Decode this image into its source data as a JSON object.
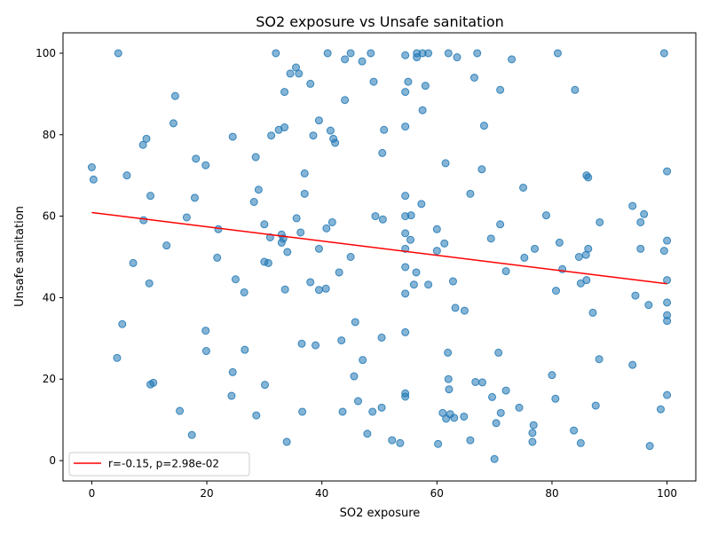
{
  "chart_data": {
    "type": "scatter",
    "title": "SO2 exposure vs Unsafe sanitation",
    "xlabel": "SO2 exposure",
    "ylabel": "Unsafe sanitation",
    "xlim": [
      -5,
      105
    ],
    "ylim": [
      -5,
      105
    ],
    "x_ticks": [
      0,
      20,
      40,
      60,
      80,
      100
    ],
    "y_ticks": [
      0,
      20,
      40,
      60,
      80,
      100
    ],
    "grid": false,
    "legend_position": "lower-left",
    "colors": {
      "points": "#1f77b4",
      "fit_line": "#ff0000"
    },
    "fit_line": {
      "label": "r=-0.15, p=2.98e-02",
      "x": [
        0,
        100
      ],
      "y": [
        60.9,
        43.4
      ]
    },
    "points": [
      [
        4.6,
        100
      ],
      [
        32,
        100
      ],
      [
        41,
        100
      ],
      [
        45,
        100
      ],
      [
        48.5,
        100
      ],
      [
        56.5,
        100
      ],
      [
        57.5,
        100
      ],
      [
        58.5,
        100
      ],
      [
        62,
        100
      ],
      [
        67,
        100
      ],
      [
        81,
        100
      ],
      [
        99.5,
        100
      ],
      [
        54.5,
        99.5
      ],
      [
        56.5,
        99
      ],
      [
        63.5,
        99
      ],
      [
        73,
        98.5
      ],
      [
        44,
        98.5
      ],
      [
        47,
        98
      ],
      [
        35.5,
        96.5
      ],
      [
        34.5,
        95
      ],
      [
        36,
        95
      ],
      [
        66.5,
        94
      ],
      [
        55,
        93
      ],
      [
        49,
        93
      ],
      [
        38,
        92.5
      ],
      [
        58,
        92
      ],
      [
        71,
        91
      ],
      [
        84,
        91
      ],
      [
        33.5,
        90.5
      ],
      [
        54.5,
        90.5
      ],
      [
        14.5,
        89.5
      ],
      [
        44,
        88.5
      ],
      [
        57.5,
        86
      ],
      [
        39.5,
        83.5
      ],
      [
        14.2,
        82.8
      ],
      [
        68.2,
        82.2
      ],
      [
        54.5,
        82
      ],
      [
        33.5,
        81.8
      ],
      [
        32.5,
        81.2
      ],
      [
        41.5,
        81
      ],
      [
        50.8,
        81.2
      ],
      [
        31.2,
        79.8
      ],
      [
        38.5,
        79.8
      ],
      [
        24.5,
        79.5
      ],
      [
        42,
        79
      ],
      [
        9.5,
        79
      ],
      [
        42.3,
        78
      ],
      [
        8.9,
        77.5
      ],
      [
        50.5,
        75.5
      ],
      [
        28.5,
        74.5
      ],
      [
        18.1,
        74.1
      ],
      [
        61.5,
        73
      ],
      [
        19.8,
        72.5
      ],
      [
        0,
        72
      ],
      [
        67.8,
        71.5
      ],
      [
        100,
        71
      ],
      [
        37,
        70.5
      ],
      [
        6.1,
        70
      ],
      [
        86,
        70
      ],
      [
        86.3,
        69.5
      ],
      [
        0.3,
        69
      ],
      [
        75,
        67
      ],
      [
        29,
        66.5
      ],
      [
        37,
        65.5
      ],
      [
        65.8,
        65.5
      ],
      [
        10.2,
        65
      ],
      [
        54.5,
        65
      ],
      [
        17.9,
        64.5
      ],
      [
        28.2,
        63.5
      ],
      [
        57.3,
        63
      ],
      [
        94,
        62.5
      ],
      [
        96,
        60.5
      ],
      [
        79,
        60.2
      ],
      [
        55.5,
        60.2
      ],
      [
        49.3,
        60
      ],
      [
        54.5,
        60
      ],
      [
        16.5,
        59.7
      ],
      [
        35.6,
        59.5
      ],
      [
        9,
        59
      ],
      [
        50.6,
        59.2
      ],
      [
        88.3,
        58.5
      ],
      [
        41.8,
        58.5
      ],
      [
        95.4,
        58.5
      ],
      [
        30,
        58
      ],
      [
        71,
        58
      ],
      [
        22,
        56.8
      ],
      [
        40.8,
        57
      ],
      [
        60,
        56.8
      ],
      [
        36.3,
        56
      ],
      [
        54.5,
        55.8
      ],
      [
        33,
        55.5
      ],
      [
        31,
        54.8
      ],
      [
        33.3,
        54.5
      ],
      [
        69.4,
        54.5
      ],
      [
        100,
        54
      ],
      [
        55.4,
        54.2
      ],
      [
        81.3,
        53.5
      ],
      [
        33,
        53.5
      ],
      [
        61.3,
        53.3
      ],
      [
        13,
        52.8
      ],
      [
        77,
        52
      ],
      [
        39.5,
        52
      ],
      [
        54.5,
        52
      ],
      [
        86.3,
        52
      ],
      [
        95.4,
        52
      ],
      [
        99.5,
        51.5
      ],
      [
        60,
        51.5
      ],
      [
        34,
        51.2
      ],
      [
        85.9,
        50.5
      ],
      [
        84.7,
        50
      ],
      [
        45,
        50
      ],
      [
        75.2,
        49.8
      ],
      [
        21.8,
        49.8
      ],
      [
        30,
        48.8
      ],
      [
        30.7,
        48.5
      ],
      [
        7.2,
        48.5
      ],
      [
        54.5,
        47.5
      ],
      [
        81.8,
        47
      ],
      [
        72,
        46.5
      ],
      [
        56.4,
        46.2
      ],
      [
        43,
        46.2
      ],
      [
        86,
        44.3
      ],
      [
        100,
        44.3
      ],
      [
        25,
        44.5
      ],
      [
        62.8,
        44
      ],
      [
        38,
        43.8
      ],
      [
        10,
        43.5
      ],
      [
        58.5,
        43.2
      ],
      [
        56,
        43.2
      ],
      [
        85,
        43.5
      ],
      [
        40.7,
        42.2
      ],
      [
        33.6,
        42
      ],
      [
        39.5,
        41.9
      ],
      [
        80.7,
        41.7
      ],
      [
        26.5,
        41.3
      ],
      [
        54.5,
        41
      ],
      [
        94.5,
        40.5
      ],
      [
        100,
        38.8
      ],
      [
        96.8,
        38.2
      ],
      [
        63.2,
        37.5
      ],
      [
        64.8,
        36.8
      ],
      [
        87.1,
        36.3
      ],
      [
        100,
        35.7
      ],
      [
        100,
        34.3
      ],
      [
        45.8,
        34
      ],
      [
        5.3,
        33.5
      ],
      [
        19.8,
        31.9
      ],
      [
        54.5,
        31.5
      ],
      [
        50.4,
        30.2
      ],
      [
        43.4,
        29.5
      ],
      [
        36.5,
        28.7
      ],
      [
        38.9,
        28.3
      ],
      [
        26.6,
        27.2
      ],
      [
        19.9,
        26.9
      ],
      [
        70.7,
        26.5
      ],
      [
        61.9,
        26.5
      ],
      [
        4.4,
        25.2
      ],
      [
        88.2,
        24.9
      ],
      [
        47.1,
        24.7
      ],
      [
        94,
        23.5
      ],
      [
        24.5,
        21.7
      ],
      [
        80,
        21
      ],
      [
        45.6,
        20.7
      ],
      [
        62,
        20
      ],
      [
        66.7,
        19.3
      ],
      [
        67.9,
        19.2
      ],
      [
        10.7,
        19.1
      ],
      [
        10.2,
        18.7
      ],
      [
        30.1,
        18.6
      ],
      [
        62.1,
        17.5
      ],
      [
        72,
        17.2
      ],
      [
        100,
        16.1
      ],
      [
        54.5,
        16.5
      ],
      [
        54.5,
        15.7
      ],
      [
        24.3,
        15.9
      ],
      [
        69.6,
        15.6
      ],
      [
        80.6,
        15.2
      ],
      [
        46.3,
        14.6
      ],
      [
        87.6,
        13.5
      ],
      [
        74.3,
        13
      ],
      [
        50.4,
        13
      ],
      [
        98.9,
        12.6
      ],
      [
        15.3,
        12.2
      ],
      [
        36.6,
        12
      ],
      [
        43.6,
        12
      ],
      [
        48.8,
        12
      ],
      [
        61,
        11.7
      ],
      [
        71.1,
        11.7
      ],
      [
        62.3,
        11.4
      ],
      [
        28.6,
        11.1
      ],
      [
        64.7,
        10.8
      ],
      [
        63,
        10.5
      ],
      [
        61.6,
        10.3
      ],
      [
        70.3,
        9.2
      ],
      [
        76.8,
        8.7
      ],
      [
        83.8,
        7.4
      ],
      [
        76.6,
        6.8
      ],
      [
        47.9,
        6.6
      ],
      [
        17.4,
        6.3
      ],
      [
        52.2,
        5
      ],
      [
        65.8,
        5
      ],
      [
        33.9,
        4.6
      ],
      [
        76.6,
        4.6
      ],
      [
        53.6,
        4.3
      ],
      [
        85,
        4.3
      ],
      [
        60.2,
        4.1
      ],
      [
        97,
        3.6
      ],
      [
        70,
        0.4
      ]
    ]
  }
}
